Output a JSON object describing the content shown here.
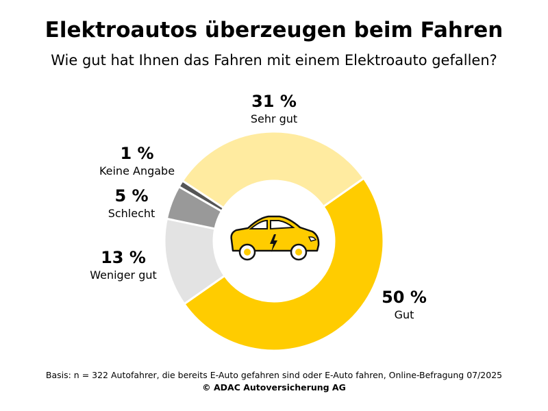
{
  "title": "Elektroautos überzeugen beim Fahren",
  "subtitle": "Wie gut hat Ihnen das Fahren mit einem Elektroauto gefallen?",
  "chart_data": {
    "type": "pie",
    "donut": true,
    "center_icon": "electric-car-icon",
    "slices": [
      {
        "label": "Gut",
        "value": 50,
        "display": "50 %",
        "color": "#FFCC00"
      },
      {
        "label": "Weniger gut",
        "value": 13,
        "display": "13 %",
        "color": "#E3E3E3"
      },
      {
        "label": "Schlecht",
        "value": 5,
        "display": "5 %",
        "color": "#999999"
      },
      {
        "label": "Keine Angabe",
        "value": 1,
        "display": "1 %",
        "color": "#555555"
      },
      {
        "label": "Sehr gut",
        "value": 31,
        "display": "31 %",
        "color": "#FFEBA0"
      }
    ]
  },
  "footer": {
    "basis": "Basis: n = 322 Autofahrer, die bereits E-Auto gefahren sind oder E-Auto fahren, Online-Befragung 07/2025",
    "copyright": "© ADAC Autoversicherung AG"
  }
}
